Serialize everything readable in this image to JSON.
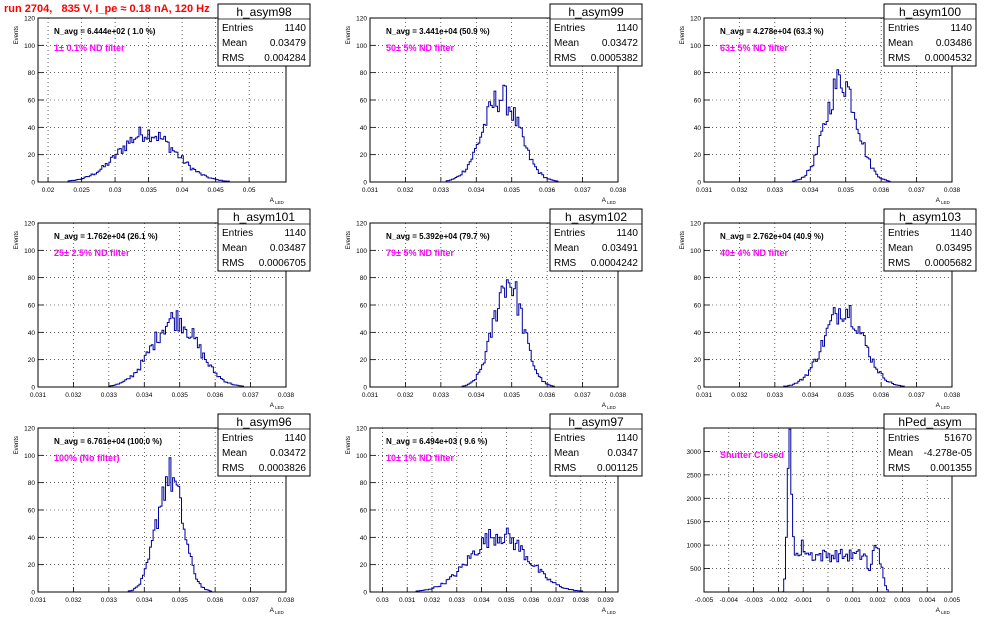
{
  "page": {
    "title": "run 2704,   835 V, I_pe ≈ 0.18 nA, 120 Hz"
  },
  "chart_data": [
    {
      "type": "histogram",
      "name": "h_asym98",
      "navg": "N_avg = 6.444e+02 ( 1.0 %)",
      "filter": "1± 0.1% ND filter",
      "stats": {
        "entries": "1140",
        "mean": "0.03479",
        "rms": "0.004284"
      },
      "ylabel": "Events",
      "xlabel": "A",
      "xsub": "LED",
      "xlim": [
        0.0185,
        0.0555
      ],
      "ylim": [
        0,
        120
      ],
      "xticks": [
        0.02,
        0.025,
        0.03,
        0.035,
        0.04,
        0.045,
        0.05
      ],
      "xtick_labels": [
        "0.02",
        "0.025",
        "0.03",
        "0.035",
        "0.04",
        "0.045",
        "0.05"
      ],
      "yticks": [
        0,
        20,
        40,
        60,
        80,
        100,
        120
      ],
      "ytick_labels": [
        "0",
        "20",
        "40",
        "60",
        "80",
        "100",
        "120"
      ],
      "shape": {
        "peaks": [
          {
            "mu": 0.0348,
            "sigma": 0.0042,
            "amp": 36
          }
        ]
      }
    },
    {
      "type": "histogram",
      "name": "h_asym99",
      "navg": "N_avg = 3.441e+04 (50.9 %)",
      "filter": "50± 5% ND filter",
      "stats": {
        "entries": "1140",
        "mean": "0.03472",
        "rms": "0.0005382"
      },
      "ylabel": "Events",
      "xlabel": "A",
      "xsub": "LED",
      "xlim": [
        0.031,
        0.038
      ],
      "ylim": [
        0,
        120
      ],
      "xticks": [
        0.031,
        0.032,
        0.033,
        0.034,
        0.035,
        0.036,
        0.037,
        0.038
      ],
      "xtick_labels": [
        "0.031",
        "0.032",
        "0.033",
        "0.034",
        "0.035",
        "0.036",
        "0.037",
        "0.038"
      ],
      "yticks": [
        0,
        20,
        40,
        60,
        80,
        100,
        120
      ],
      "ytick_labels": [
        "0",
        "20",
        "40",
        "60",
        "80",
        "100",
        "120"
      ],
      "shape": {
        "peaks": [
          {
            "mu": 0.0347,
            "sigma": 0.00052,
            "amp": 62
          }
        ]
      }
    },
    {
      "type": "histogram",
      "name": "h_asym100",
      "navg": "N_avg = 4.278e+04 (63.3 %)",
      "filter": "63± 5% ND filter",
      "stats": {
        "entries": "1140",
        "mean": "0.03486",
        "rms": "0.0004532"
      },
      "ylabel": "Events",
      "xlabel": "A",
      "xsub": "LED",
      "xlim": [
        0.031,
        0.038
      ],
      "ylim": [
        0,
        120
      ],
      "xticks": [
        0.031,
        0.032,
        0.033,
        0.034,
        0.035,
        0.036,
        0.037,
        0.038
      ],
      "xtick_labels": [
        "0.031",
        "0.032",
        "0.033",
        "0.034",
        "0.035",
        "0.036",
        "0.037",
        "0.038"
      ],
      "yticks": [
        0,
        20,
        40,
        60,
        80,
        100,
        120
      ],
      "ytick_labels": [
        "0",
        "20",
        "40",
        "60",
        "80",
        "100",
        "120"
      ],
      "shape": {
        "peaks": [
          {
            "mu": 0.03488,
            "sigma": 0.00044,
            "amp": 75
          }
        ]
      }
    },
    {
      "type": "histogram",
      "name": "h_asym101",
      "navg": "N_avg = 1.762e+04 (26.1 %)",
      "filter": "25± 2.5% ND filter",
      "stats": {
        "entries": "1140",
        "mean": "0.03487",
        "rms": "0.0006705"
      },
      "ylabel": "Events",
      "xlabel": "A",
      "xsub": "LED",
      "xlim": [
        0.031,
        0.038
      ],
      "ylim": [
        0,
        120
      ],
      "xticks": [
        0.031,
        0.032,
        0.033,
        0.034,
        0.035,
        0.036,
        0.037,
        0.038
      ],
      "xtick_labels": [
        "0.031",
        "0.032",
        "0.033",
        "0.034",
        "0.035",
        "0.036",
        "0.037",
        "0.038"
      ],
      "yticks": [
        0,
        20,
        40,
        60,
        80,
        100,
        120
      ],
      "ytick_labels": [
        "0",
        "20",
        "40",
        "60",
        "80",
        "100",
        "120"
      ],
      "shape": {
        "peaks": [
          {
            "mu": 0.03487,
            "sigma": 0.00064,
            "amp": 50
          }
        ]
      }
    },
    {
      "type": "histogram",
      "name": "h_asym102",
      "navg": "N_avg = 5.392e+04 (79.7 %)",
      "filter": "79± 5% ND filter",
      "stats": {
        "entries": "1140",
        "mean": "0.03491",
        "rms": "0.0004242"
      },
      "ylabel": "Events",
      "xlabel": "A",
      "xsub": "LED",
      "xlim": [
        0.031,
        0.038
      ],
      "ylim": [
        0,
        120
      ],
      "xticks": [
        0.031,
        0.032,
        0.033,
        0.034,
        0.035,
        0.036,
        0.037,
        0.038
      ],
      "xtick_labels": [
        "0.031",
        "0.032",
        "0.033",
        "0.034",
        "0.035",
        "0.036",
        "0.037",
        "0.038"
      ],
      "yticks": [
        0,
        20,
        40,
        60,
        80,
        100,
        120
      ],
      "ytick_labels": [
        "0",
        "20",
        "40",
        "60",
        "80",
        "100",
        "120"
      ],
      "shape": {
        "peaks": [
          {
            "mu": 0.0349,
            "sigma": 0.00041,
            "amp": 78
          }
        ]
      }
    },
    {
      "type": "histogram",
      "name": "h_asym103",
      "navg": "N_avg = 2.762e+04 (40.9 %)",
      "filter": "40± 4% ND filter",
      "stats": {
        "entries": "1140",
        "mean": "0.03495",
        "rms": "0.0005682"
      },
      "ylabel": "Events",
      "xlabel": "A",
      "xsub": "LED",
      "xlim": [
        0.031,
        0.038
      ],
      "ylim": [
        0,
        120
      ],
      "xticks": [
        0.031,
        0.032,
        0.033,
        0.034,
        0.035,
        0.036,
        0.037,
        0.038
      ],
      "xtick_labels": [
        "0.031",
        "0.032",
        "0.033",
        "0.034",
        "0.035",
        "0.036",
        "0.037",
        "0.038"
      ],
      "yticks": [
        0,
        20,
        40,
        60,
        80,
        100,
        120
      ],
      "ytick_labels": [
        "0",
        "20",
        "40",
        "60",
        "80",
        "100",
        "120"
      ],
      "shape": {
        "peaks": [
          {
            "mu": 0.03495,
            "sigma": 0.00055,
            "amp": 58
          }
        ]
      }
    },
    {
      "type": "histogram",
      "name": "h_asym96",
      "navg": "N_avg = 6.761e+04 (100.0 %)",
      "filter": "100% (No filter)",
      "stats": {
        "entries": "1140",
        "mean": "0.03472",
        "rms": "0.0003826"
      },
      "ylabel": "Events",
      "xlabel": "A",
      "xsub": "LED",
      "xlim": [
        0.031,
        0.038
      ],
      "ylim": [
        0,
        120
      ],
      "xticks": [
        0.031,
        0.032,
        0.033,
        0.034,
        0.035,
        0.036,
        0.037,
        0.038
      ],
      "xtick_labels": [
        "0.031",
        "0.032",
        "0.033",
        "0.034",
        "0.035",
        "0.036",
        "0.037",
        "0.038"
      ],
      "yticks": [
        0,
        20,
        40,
        60,
        80,
        100,
        120
      ],
      "ytick_labels": [
        "0",
        "20",
        "40",
        "60",
        "80",
        "100",
        "120"
      ],
      "shape": {
        "peaks": [
          {
            "mu": 0.03472,
            "sigma": 0.00037,
            "amp": 85
          }
        ]
      }
    },
    {
      "type": "histogram",
      "name": "h_asym97",
      "navg": "N_avg = 6.494e+03 ( 9.6 %)",
      "filter": "10± 1% ND filter",
      "stats": {
        "entries": "1140",
        "mean": "0.0347",
        "rms": "0.001125"
      },
      "ylabel": "Events",
      "xlabel": "A",
      "xsub": "LED",
      "xlim": [
        0.0295,
        0.0395
      ],
      "ylim": [
        0,
        120
      ],
      "xticks": [
        0.03,
        0.031,
        0.032,
        0.033,
        0.034,
        0.035,
        0.036,
        0.037,
        0.038,
        0.039
      ],
      "xtick_labels": [
        "0.03",
        "0.031",
        "0.032",
        "0.033",
        "0.034",
        "0.035",
        "0.036",
        "0.037",
        "0.038",
        "0.039"
      ],
      "yticks": [
        0,
        20,
        40,
        60,
        80,
        100,
        120
      ],
      "ytick_labels": [
        "0",
        "20",
        "40",
        "60",
        "80",
        "100",
        "120"
      ],
      "shape": {
        "peaks": [
          {
            "mu": 0.0347,
            "sigma": 0.00115,
            "amp": 42
          }
        ]
      }
    },
    {
      "type": "histogram",
      "name": "hPed_asym",
      "navg": "",
      "filter": "Shutter Closed",
      "stats": {
        "entries": "51670",
        "mean": "-4.278e-05",
        "rms": "0.001355"
      },
      "ylabel": "",
      "xlabel": "A",
      "xsub": "LED",
      "xlim": [
        -0.005,
        0.005
      ],
      "ylim": [
        0,
        3500
      ],
      "xticks": [
        -0.005,
        -0.004,
        -0.003,
        -0.002,
        -0.001,
        0,
        0.001,
        0.002,
        0.003,
        0.004,
        0.005
      ],
      "xtick_labels": [
        "-0.005",
        "-0.004",
        "-0.003",
        "-0.002",
        "-0.001",
        "0",
        "0.001",
        "0.002",
        "0.003",
        "0.004",
        "0.005"
      ],
      "yticks": [
        500,
        1000,
        1500,
        2000,
        2500,
        3000
      ],
      "ytick_labels": [
        "500",
        "1000",
        "1500",
        "2000",
        "2500",
        "3000"
      ],
      "shape": {
        "peaks": [
          {
            "mu": -0.00155,
            "sigma": 8e-05,
            "amp": 2600
          },
          {
            "mu": -0.00135,
            "sigma": 0.00022,
            "amp": 900
          },
          {
            "mu": 0.00195,
            "sigma": 0.00018,
            "amp": 1050
          }
        ],
        "plateau": {
          "from": -0.0012,
          "to": 0.0017,
          "level": 780
        },
        "range": [
          -0.0018,
          0.0024
        ]
      }
    }
  ]
}
